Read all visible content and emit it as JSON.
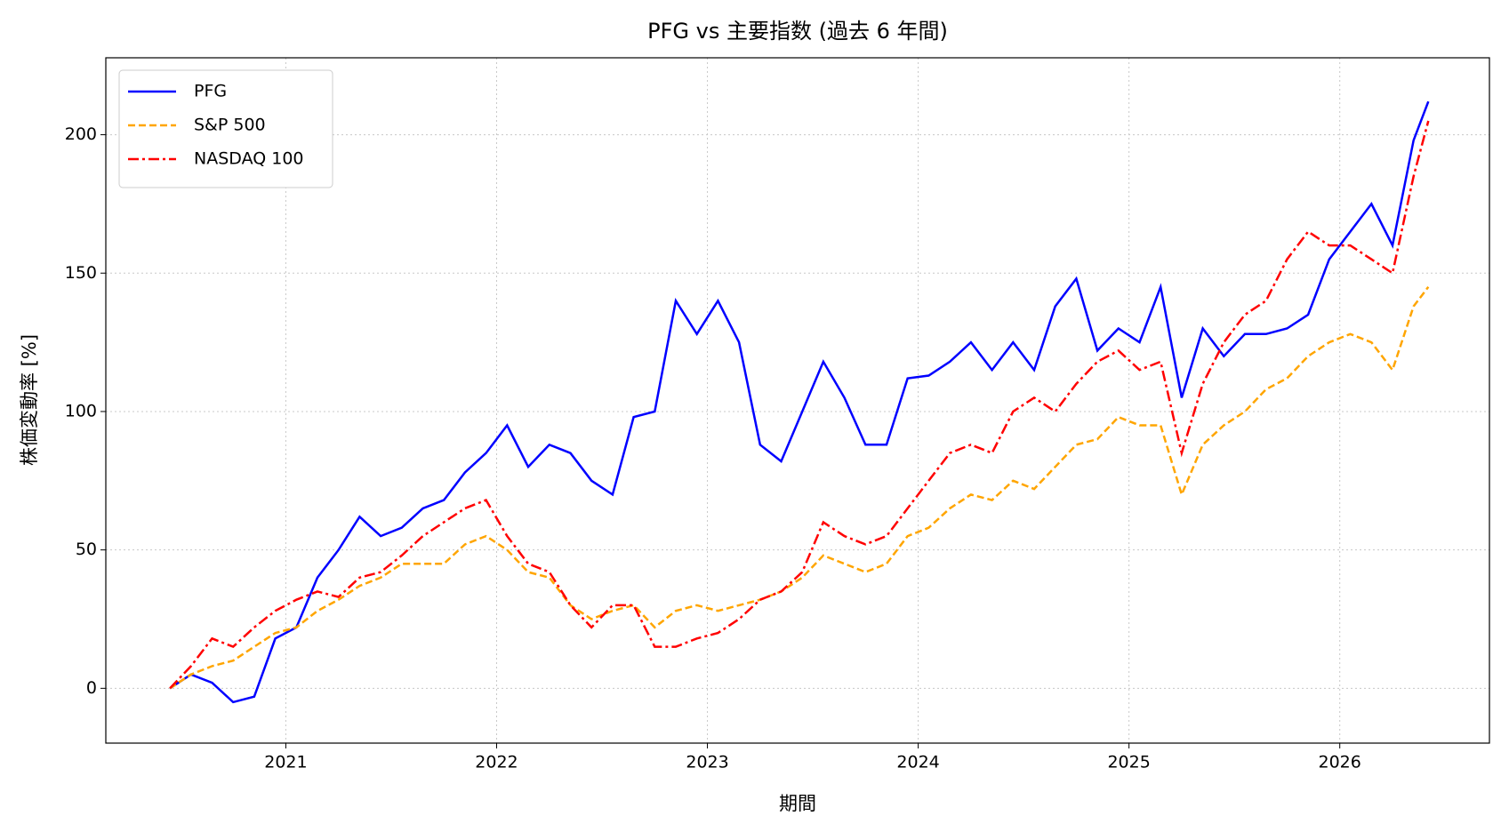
{
  "chart_data": {
    "type": "line",
    "title": "PFG vs 主要指数 (過去 6 年間)",
    "x_label": "期間",
    "y_label": "株価変動率 [%]",
    "x": [
      2020.45,
      2020.55,
      2020.65,
      2020.75,
      2020.85,
      2020.95,
      2021.05,
      2021.15,
      2021.25,
      2021.35,
      2021.45,
      2021.55,
      2021.65,
      2021.75,
      2021.85,
      2021.95,
      2022.05,
      2022.15,
      2022.25,
      2022.35,
      2022.45,
      2022.55,
      2022.65,
      2022.75,
      2022.85,
      2022.95,
      2023.05,
      2023.15,
      2023.25,
      2023.35,
      2023.45,
      2023.55,
      2023.65,
      2023.75,
      2023.85,
      2023.95,
      2024.05,
      2024.15,
      2024.25,
      2024.35,
      2024.45,
      2024.55,
      2024.65,
      2024.75,
      2024.85,
      2024.95,
      2025.05,
      2025.15,
      2025.25,
      2025.35,
      2025.45,
      2025.55,
      2025.65,
      2025.75,
      2025.85,
      2025.95,
      2026.05,
      2026.15,
      2026.25,
      2026.35,
      2026.42
    ],
    "series": [
      {
        "name": "PFG",
        "color": "#0000ff",
        "style": "solid",
        "values": [
          0,
          5,
          2,
          -5,
          -3,
          18,
          22,
          40,
          50,
          62,
          55,
          58,
          65,
          68,
          78,
          85,
          95,
          80,
          88,
          85,
          75,
          70,
          98,
          100,
          140,
          128,
          140,
          125,
          88,
          82,
          100,
          118,
          105,
          88,
          88,
          112,
          113,
          118,
          125,
          115,
          125,
          115,
          138,
          148,
          122,
          130,
          125,
          145,
          105,
          130,
          120,
          128,
          128,
          130,
          135,
          155,
          165,
          175,
          160,
          198,
          212
        ]
      },
      {
        "name": "S&P 500",
        "color": "#ffa500",
        "style": "dashed",
        "values": [
          0,
          5,
          8,
          10,
          15,
          20,
          22,
          28,
          32,
          37,
          40,
          45,
          45,
          45,
          52,
          55,
          50,
          42,
          40,
          30,
          25,
          28,
          30,
          22,
          28,
          30,
          28,
          30,
          32,
          35,
          40,
          48,
          45,
          42,
          45,
          55,
          58,
          65,
          70,
          68,
          75,
          72,
          80,
          88,
          90,
          98,
          95,
          95,
          70,
          88,
          95,
          100,
          108,
          112,
          120,
          125,
          128,
          125,
          115,
          138,
          145
        ]
      },
      {
        "name": "NASDAQ 100",
        "color": "#ff0000",
        "style": "dashdot",
        "values": [
          0,
          8,
          18,
          15,
          22,
          28,
          32,
          35,
          33,
          40,
          42,
          48,
          55,
          60,
          65,
          68,
          55,
          45,
          42,
          30,
          22,
          30,
          30,
          15,
          15,
          18,
          20,
          25,
          32,
          35,
          42,
          60,
          55,
          52,
          55,
          65,
          75,
          85,
          88,
          85,
          100,
          105,
          100,
          110,
          118,
          122,
          115,
          118,
          85,
          110,
          125,
          135,
          140,
          155,
          165,
          160,
          160,
          155,
          150,
          185,
          205
        ]
      }
    ],
    "xlim": [
      2020.146,
      2026.71
    ],
    "xticks": [
      2021,
      2022,
      2023,
      2024,
      2025,
      2026
    ],
    "ylim": [
      -19.8,
      227.8
    ],
    "yticks": [
      0,
      50,
      100,
      150,
      200
    ],
    "grid": true,
    "legend": "upper left"
  }
}
